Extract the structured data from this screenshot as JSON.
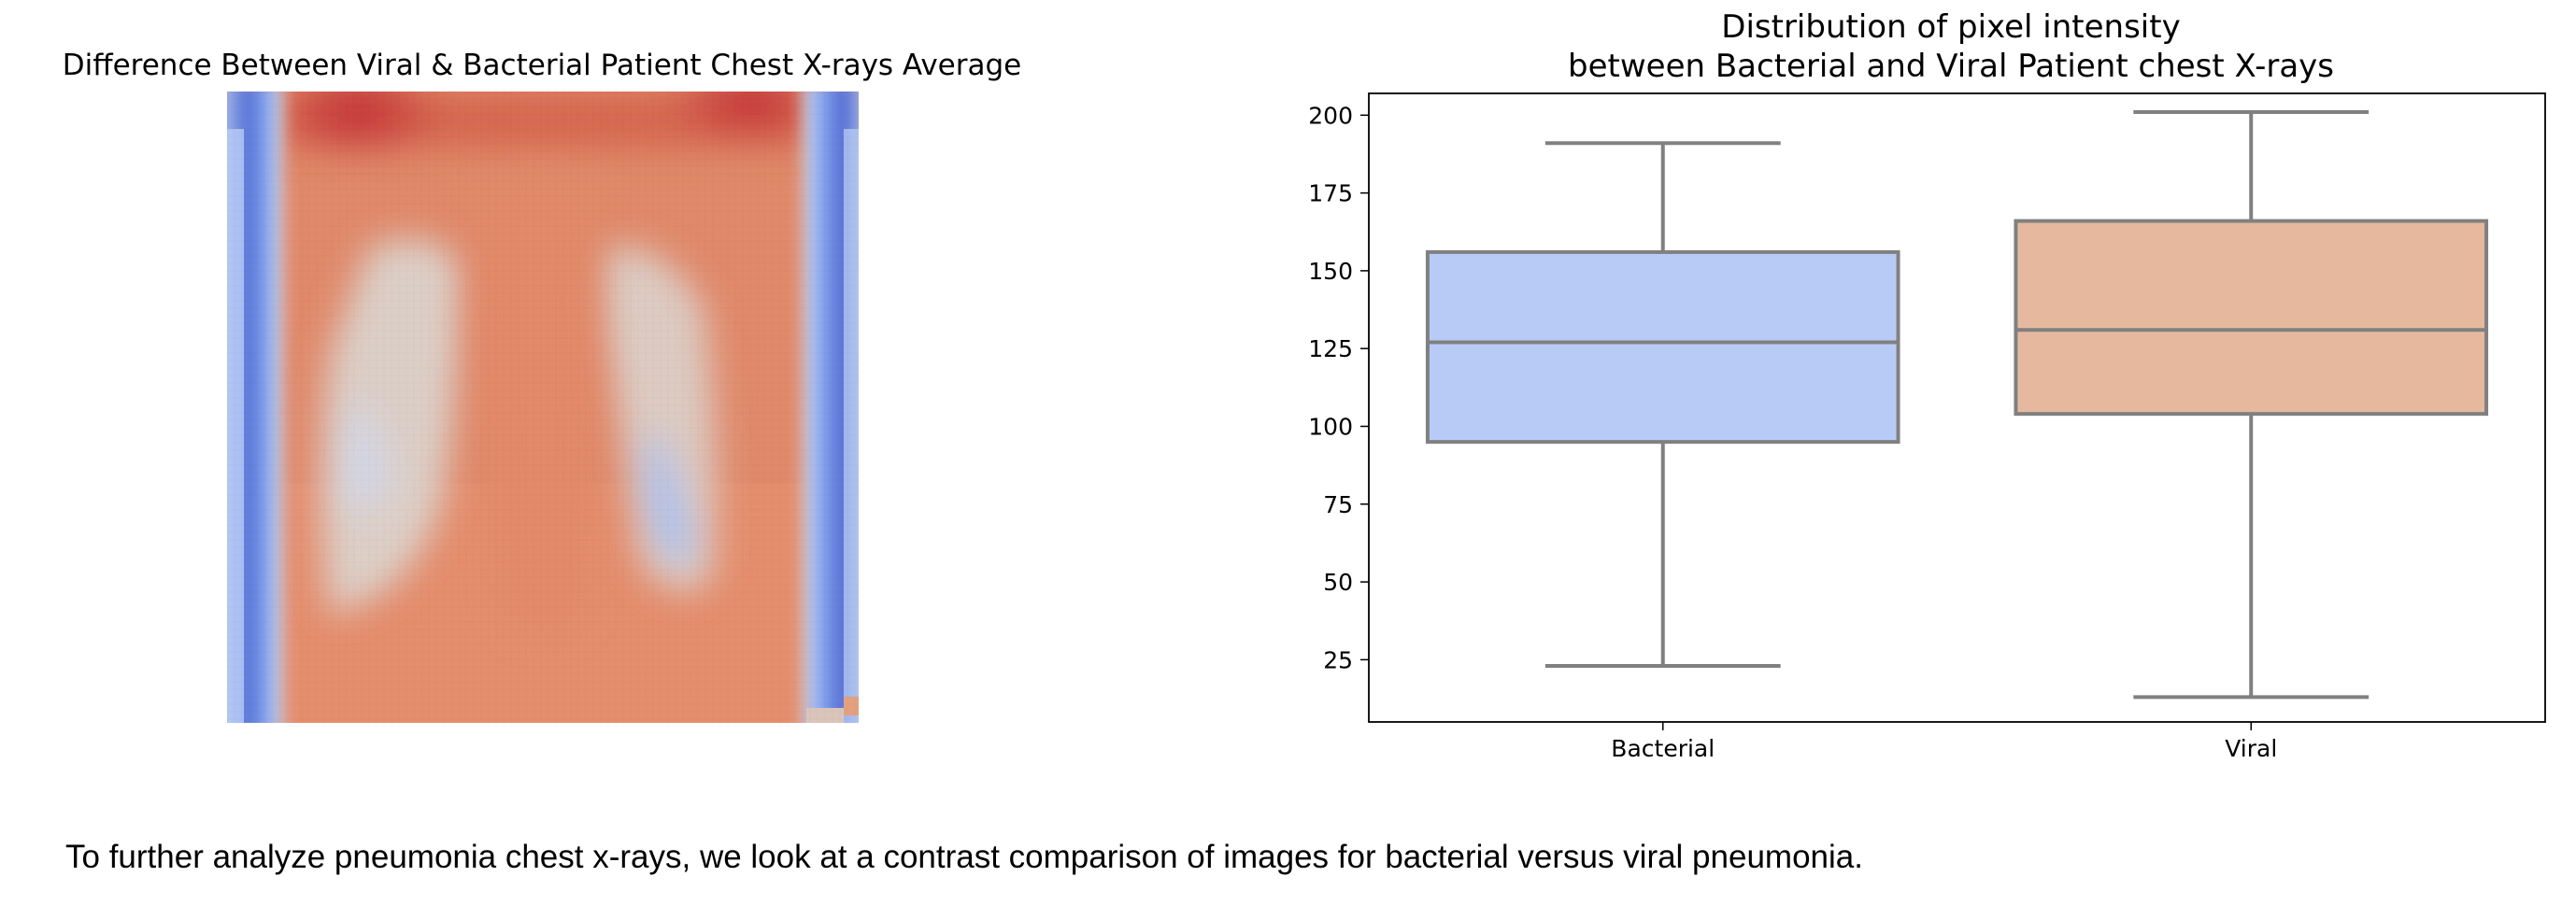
{
  "colors": {
    "bacterial_box": "#b8cbf6",
    "viral_box": "#e6b99f",
    "box_edge": "#808080",
    "cold": "#3b4cc0",
    "neutral": "#dddddd",
    "warm": "#b40426"
  },
  "caption": "To further analyze pneumonia chest x-rays, we look at a contrast comparison of images for bacterial versus viral pneumonia.",
  "chart_data": [
    {
      "type": "heatmap",
      "title": "Difference Between Viral & Bacterial Patient Chest X-rays Average",
      "colormap": "coolwarm",
      "description_of_values": "difference image, values not labeled"
    },
    {
      "type": "box",
      "title_line1": "Distribution of pixel intensity",
      "title_line2": "between Bacterial and Viral Patient chest X-rays",
      "xlabel": "",
      "ylabel": "",
      "ylim": [
        5,
        207
      ],
      "yticks": [
        25,
        50,
        75,
        100,
        125,
        150,
        175,
        200
      ],
      "categories": [
        "Bacterial",
        "Viral"
      ],
      "series": [
        {
          "name": "Bacterial",
          "whisker_low": 23,
          "q1": 95,
          "median": 127,
          "q3": 156,
          "whisker_high": 191
        },
        {
          "name": "Viral",
          "whisker_low": 13,
          "q1": 104,
          "median": 131,
          "q3": 166,
          "whisker_high": 201
        }
      ]
    }
  ]
}
